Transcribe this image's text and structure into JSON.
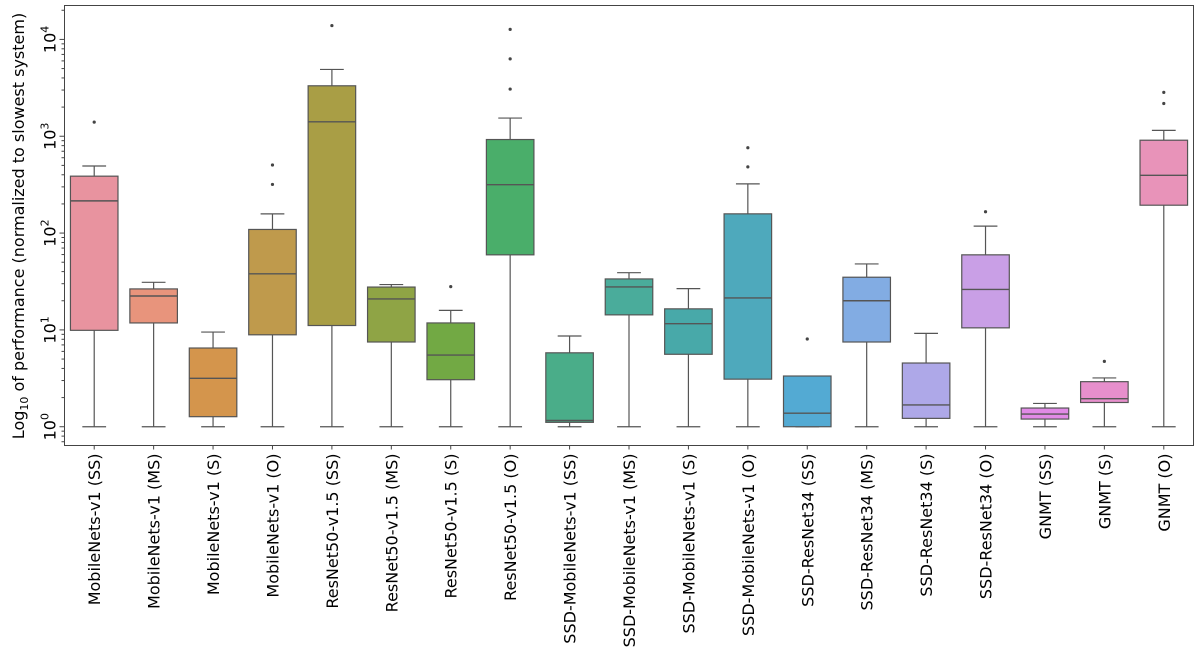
{
  "chart_data": {
    "type": "box",
    "title": "",
    "xlabel": "",
    "ylabel": {
      "prefix": "Log",
      "subscript": "10",
      "rest": " of performance (normalized to slowest system)"
    },
    "yscale": "log",
    "ylim": [
      0.64,
      22400
    ],
    "yticks": [
      {
        "base": "10",
        "exp": "0",
        "value": 1
      },
      {
        "base": "10",
        "exp": "1",
        "value": 10
      },
      {
        "base": "10",
        "exp": "2",
        "value": 100
      },
      {
        "base": "10",
        "exp": "3",
        "value": 1000
      },
      {
        "base": "10",
        "exp": "4",
        "value": 10000
      }
    ],
    "grid": false,
    "categories": [
      "MobileNets-v1 (SS)",
      "MobileNets-v1 (MS)",
      "MobileNets-v1 (S)",
      "MobileNets-v1 (O)",
      "ResNet50-v1.5 (SS)",
      "ResNet50-v1.5 (MS)",
      "ResNet50-v1.5 (S)",
      "ResNet50-v1.5 (O)",
      "SSD-MobileNets-v1 (SS)",
      "SSD-MobileNets-v1 (MS)",
      "SSD-MobileNets-v1 (S)",
      "SSD-MobileNets-v1 (O)",
      "SSD-ResNet34 (SS)",
      "SSD-ResNet34 (MS)",
      "SSD-ResNet34 (S)",
      "SSD-ResNet34 (O)",
      "GNMT (SS)",
      "GNMT (S)",
      "GNMT (O)"
    ],
    "boxes": [
      {
        "whislo": 1,
        "q1": 9.9,
        "med": 215,
        "q3": 387,
        "whishi": 493,
        "fliers": [
          1400
        ],
        "color": "#e8939f"
      },
      {
        "whislo": 1,
        "q1": 11.8,
        "med": 22.4,
        "q3": 26.5,
        "whishi": 31,
        "fliers": [],
        "color": "#e8947c"
      },
      {
        "whislo": 1,
        "q1": 1.27,
        "med": 3.16,
        "q3": 6.5,
        "whishi": 9.5,
        "fliers": [],
        "color": "#d4954c"
      },
      {
        "whislo": 1,
        "q1": 8.9,
        "med": 38,
        "q3": 109,
        "whishi": 158,
        "fliers": [
          318,
          505
        ],
        "color": "#bf9a4c"
      },
      {
        "whislo": 1,
        "q1": 11.1,
        "med": 1410,
        "q3": 3320,
        "whishi": 4900,
        "fliers": [
          13900
        ],
        "color": "#a99e45"
      },
      {
        "whislo": 1,
        "q1": 7.5,
        "med": 20.9,
        "q3": 27.7,
        "whishi": 29.4,
        "fliers": [],
        "color": "#8fa445"
      },
      {
        "whislo": 1,
        "q1": 3.06,
        "med": 5.5,
        "q3": 11.8,
        "whishi": 15.9,
        "fliers": [
          28
        ],
        "color": "#72a944"
      },
      {
        "whislo": 1,
        "q1": 59.6,
        "med": 316,
        "q3": 925,
        "whishi": 1540,
        "fliers": [
          3070,
          6300,
          12700
        ],
        "color": "#4aae6a"
      },
      {
        "whislo": 1,
        "q1": 1.11,
        "med": 1.16,
        "q3": 5.8,
        "whishi": 8.65,
        "fliers": [],
        "color": "#4aad89"
      },
      {
        "whislo": 1,
        "q1": 14.3,
        "med": 27.8,
        "q3": 33.6,
        "whishi": 39,
        "fliers": [],
        "color": "#4aac9b"
      },
      {
        "whislo": 1,
        "q1": 5.6,
        "med": 11.6,
        "q3": 16.5,
        "whishi": 26.7,
        "fliers": [],
        "color": "#48a9a9"
      },
      {
        "whislo": 1,
        "q1": 3.1,
        "med": 21.4,
        "q3": 158,
        "whishi": 322,
        "fliers": [
          483,
          760
        ],
        "color": "#4ea9bc"
      },
      {
        "whislo": 1,
        "q1": 1.0,
        "med": 1.38,
        "q3": 3.34,
        "whishi": 3.34,
        "fliers": [
          8.06
        ],
        "color": "#53aad3"
      },
      {
        "whislo": 1,
        "q1": 7.5,
        "med": 20,
        "q3": 35,
        "whishi": 48,
        "fliers": [],
        "color": "#82ace3"
      },
      {
        "whislo": 1,
        "q1": 1.22,
        "med": 1.68,
        "q3": 4.55,
        "whishi": 9.2,
        "fliers": [],
        "color": "#aea8e8"
      },
      {
        "whislo": 1,
        "q1": 10.5,
        "med": 26.2,
        "q3": 59.6,
        "whishi": 118,
        "fliers": [
          166
        ],
        "color": "#c99fe6"
      },
      {
        "whislo": 1,
        "q1": 1.2,
        "med": 1.35,
        "q3": 1.56,
        "whishi": 1.74,
        "fliers": [],
        "color": "#e18ae6"
      },
      {
        "whislo": 1,
        "q1": 1.78,
        "med": 1.95,
        "q3": 2.92,
        "whishi": 3.19,
        "fliers": [
          4.73
        ],
        "color": "#e78fcc"
      },
      {
        "whislo": 1,
        "q1": 194,
        "med": 395,
        "q3": 910,
        "whishi": 1150,
        "fliers": [
          2180,
          2840
        ],
        "color": "#e893b9"
      }
    ]
  }
}
